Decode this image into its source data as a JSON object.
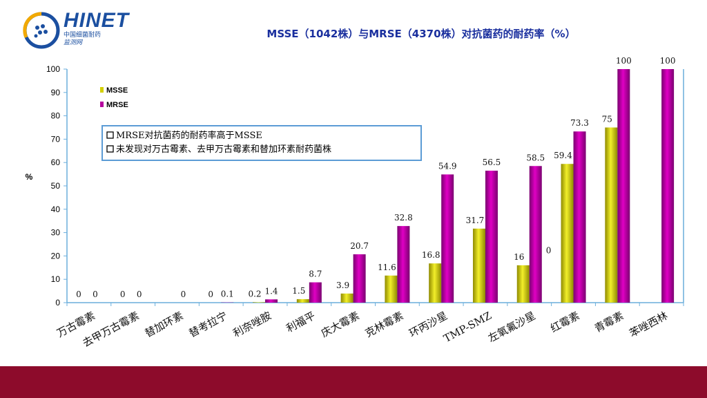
{
  "logo": {
    "name": "HINET",
    "sub1": "中国细菌耐药",
    "sub2": "监测网"
  },
  "chart_data": {
    "type": "bar",
    "title": "MSSE（1042株）与MRSE（4370株）对抗菌药的耐药率（%）",
    "ylabel": "%",
    "xlabel": "",
    "ylim": [
      0,
      100
    ],
    "yticks": [
      0,
      10,
      20,
      30,
      40,
      50,
      60,
      70,
      80,
      90,
      100
    ],
    "grid": false,
    "legend_position": "top-left",
    "categories": [
      "万古霉素",
      "去甲万古霉素",
      "替加环素",
      "替考拉宁",
      "利奈唑胺",
      "利福平",
      "庆大霉素",
      "克林霉素",
      "环丙沙星",
      "TMP-SMZ",
      "左氧氟沙星",
      "红霉素",
      "青霉素",
      "苯唑西林"
    ],
    "series": [
      {
        "name": "MSSE",
        "color": "#d4d000",
        "values": [
          0,
          0,
          null,
          0,
          0.2,
          1.5,
          3.9,
          11.6,
          16.8,
          31.7,
          16,
          59.4,
          75,
          null
        ],
        "labels": [
          "0",
          "0",
          "",
          "0",
          "0.2",
          "1.5",
          "3.9",
          "11.6",
          "16.8",
          "31.7",
          "16",
          "59.4",
          "75",
          ""
        ]
      },
      {
        "name": "MRSE",
        "color": "#b5009e",
        "values": [
          0,
          0,
          0,
          0.1,
          1.4,
          8.7,
          20.7,
          32.8,
          54.9,
          56.5,
          58.5,
          73.3,
          100,
          100
        ],
        "labels": [
          "0",
          "0",
          "0",
          "0.1",
          "1.4",
          "8.7",
          "20.7",
          "32.8",
          "54.9",
          "56.5",
          "58.5",
          "73.3",
          "100",
          "100"
        ]
      }
    ],
    "extra_labels": [
      {
        "category_index": 10,
        "text": "0"
      }
    ],
    "annotation": {
      "lines": [
        "MRSE对抗菌药的耐药率高于MSSE",
        "未发现对万古霉素、去甲万古霉素和替加环素耐药菌株"
      ]
    }
  },
  "colors": {
    "footer": "#8d0b2b",
    "title": "#1a2f9e",
    "axis": "#6aaedc",
    "annotation_border": "#5b9bd5"
  }
}
